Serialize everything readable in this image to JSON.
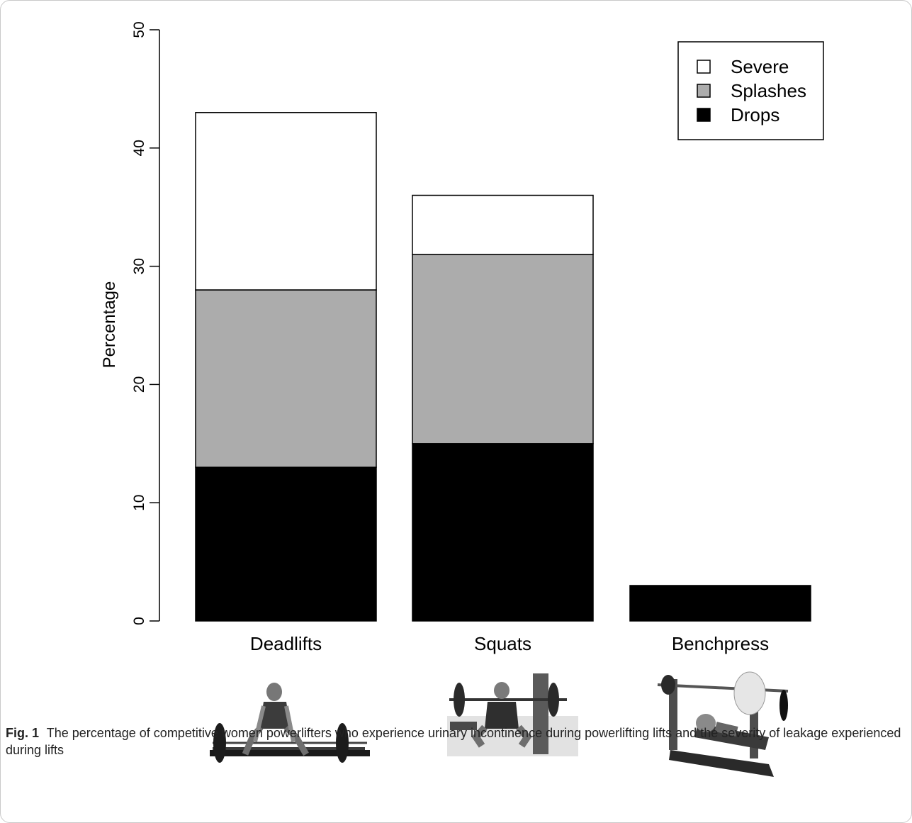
{
  "chart_data": {
    "type": "bar",
    "stacked": true,
    "categories": [
      "Deadlifts",
      "Squats",
      "Benchpress"
    ],
    "series": [
      {
        "name": "Drops",
        "values": [
          13,
          15,
          3
        ],
        "color": "#000000"
      },
      {
        "name": "Splashes",
        "values": [
          15,
          16,
          0
        ],
        "color": "#acacac"
      },
      {
        "name": "Severe",
        "values": [
          15,
          5,
          0
        ],
        "color": "#ffffff"
      }
    ],
    "title": "",
    "xlabel": "",
    "ylabel": "Percentage",
    "ylim": [
      0,
      50
    ],
    "yticks": [
      0,
      10,
      20,
      30,
      40,
      50
    ],
    "grid": false,
    "legend_position": "top-right",
    "legend_order": [
      "Severe",
      "Splashes",
      "Drops"
    ]
  },
  "illustrations": [
    {
      "name": "deadlift-photo",
      "category": "Deadlifts"
    },
    {
      "name": "squat-photo",
      "category": "Squats"
    },
    {
      "name": "benchpress-photo",
      "category": "Benchpress"
    }
  ],
  "caption": {
    "label": "Fig. 1",
    "text": "The percentage of competitive women powerlifters who experience urinary incontinence during powerlifting lifts and the severity of leakage experienced during lifts"
  }
}
